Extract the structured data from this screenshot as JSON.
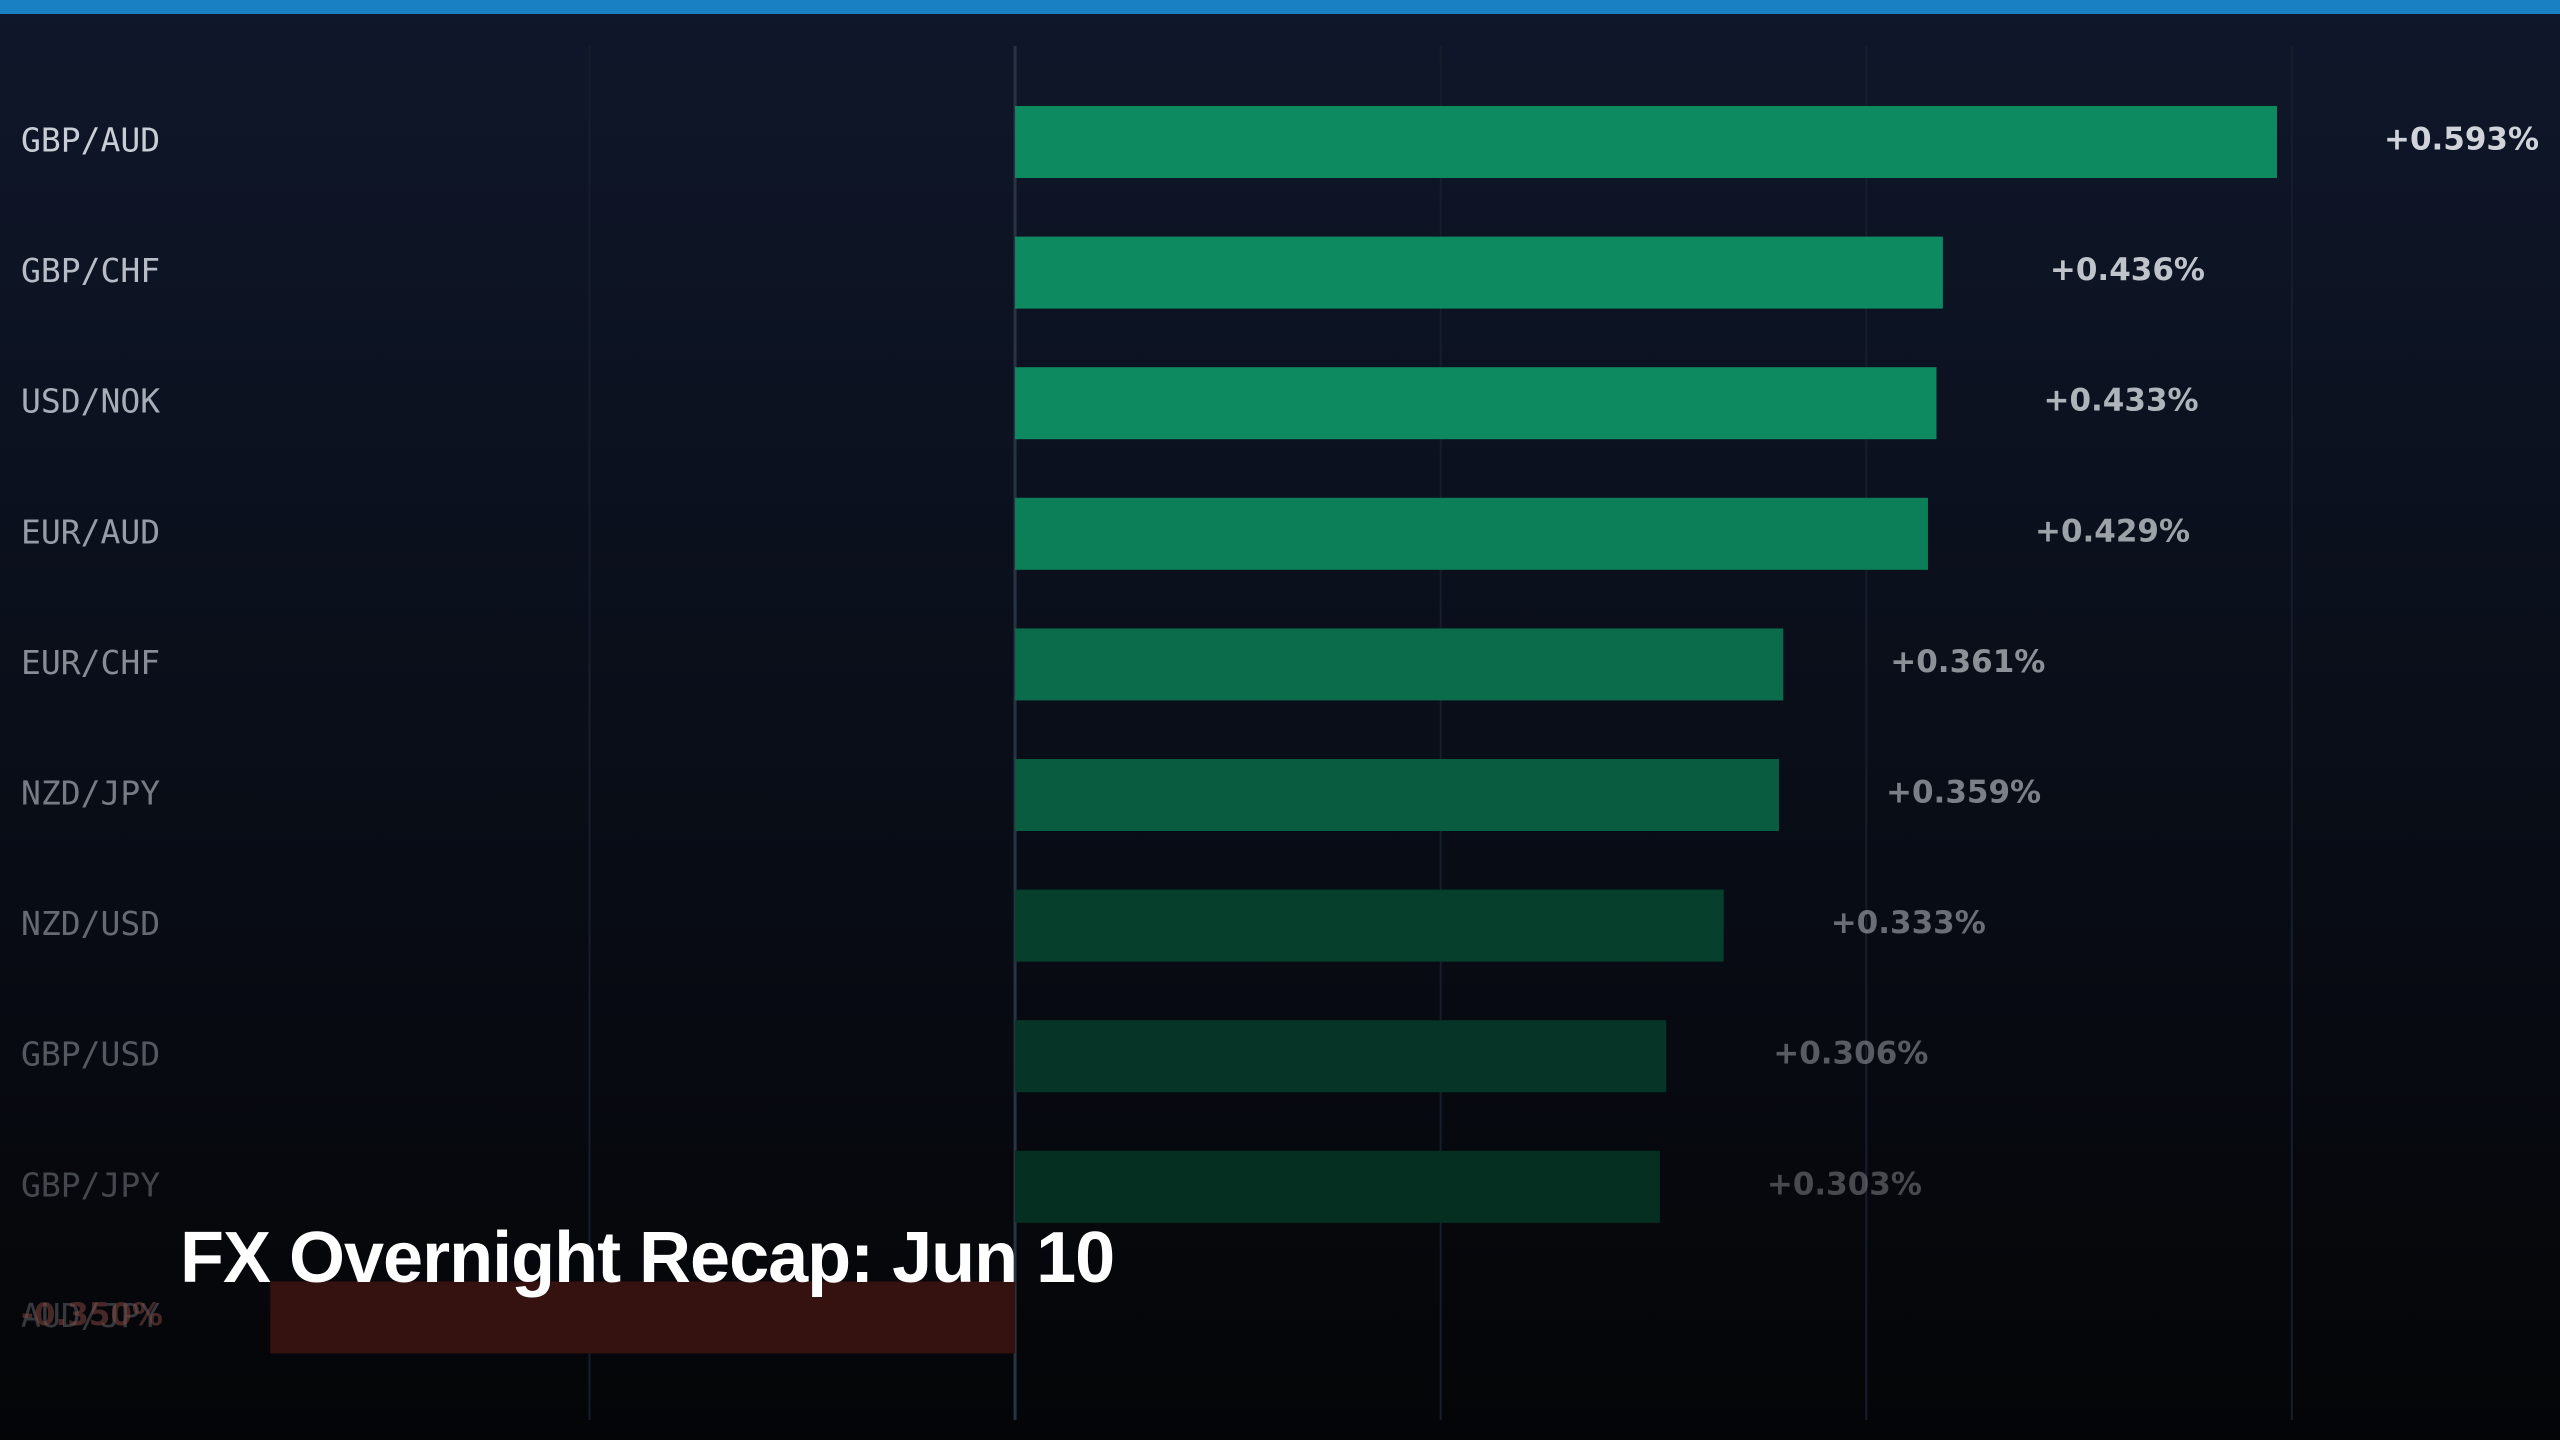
{
  "chart_data": {
    "type": "barh",
    "title": "FX Overnight Recap: Jun 10",
    "categories": [
      "GBP/AUD",
      "GBP/CHF",
      "USD/NOK",
      "EUR/AUD",
      "EUR/CHF",
      "NZD/JPY",
      "NZD/USD",
      "GBP/USD",
      "GBP/JPY",
      "AUD/JPY"
    ],
    "values": [
      0.593,
      0.436,
      0.433,
      0.429,
      0.361,
      0.359,
      0.333,
      0.306,
      0.303,
      -0.35
    ],
    "value_labels": [
      "+0.593%",
      "+0.436%",
      "+0.433%",
      "+0.429%",
      "+0.361%",
      "+0.359%",
      "+0.333%",
      "+0.306%",
      "+0.303%",
      "-0.350%"
    ],
    "colors": [
      "#0e8a60",
      "#0e8a60",
      "#0e8a60",
      "#0d7f58",
      "#0b6c4b",
      "#0a5c41",
      "#073f2d",
      "#063527",
      "#053021",
      "#35110f"
    ],
    "xlim": [
      -0.477,
      0.726
    ],
    "xticks": [
      -0.2,
      0,
      0.2,
      0.4,
      0.6
    ],
    "grid": true
  }
}
